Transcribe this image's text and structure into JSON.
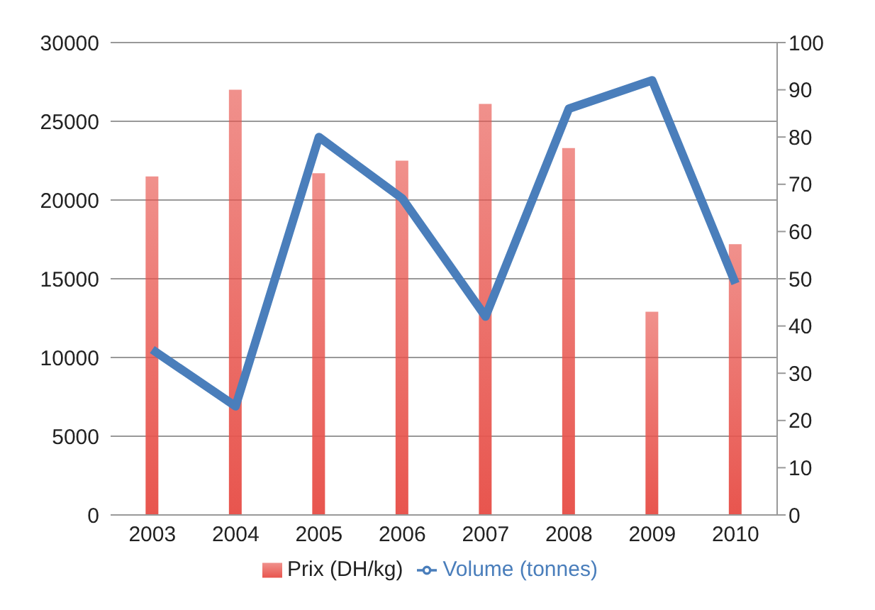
{
  "chart_data": {
    "type": "bar",
    "categories": [
      "2003",
      "2004",
      "2005",
      "2006",
      "2007",
      "2008",
      "2009",
      "2010"
    ],
    "series": [
      {
        "name": "Prix (DH/kg)",
        "color": "#e8554e",
        "values": [
          21500,
          27000,
          21700,
          22500,
          26100,
          23300,
          12900,
          17200
        ]
      },
      {
        "name": "Volume (tonnes)",
        "type": "line",
        "axis": "y2",
        "color": "#4a7ebb",
        "values": [
          35,
          23,
          80,
          67,
          42,
          86,
          92,
          49
        ]
      }
    ],
    "ylim": [
      0,
      30000
    ],
    "yticks": [
      0,
      5000,
      10000,
      15000,
      20000,
      25000,
      30000
    ],
    "y2lim": [
      0,
      100
    ],
    "y2ticks": [
      0,
      10,
      20,
      30,
      40,
      50,
      60,
      70,
      80,
      90,
      100
    ],
    "grid": "y",
    "legend": "bottom",
    "marker": "none"
  }
}
